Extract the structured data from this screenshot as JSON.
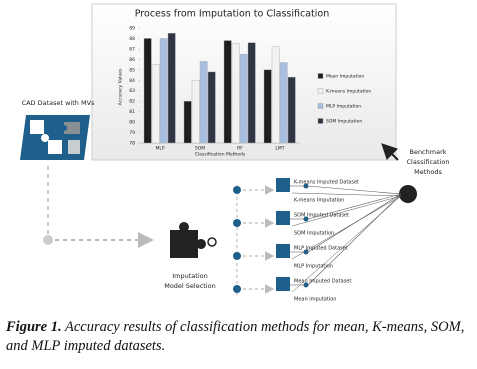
{
  "chart_data": {
    "type": "bar",
    "title": "Process from Imputation to Classification",
    "y_label": "Accuracy Values",
    "x_label": "Classification Methods",
    "categories": [
      "MLP",
      "SOM",
      "RF",
      "LMT"
    ],
    "series": [
      {
        "name": "Mean Imputation",
        "color": "#1e1e1e",
        "values": [
          88,
          82,
          87.8,
          85
        ]
      },
      {
        "name": "K-means Imputation",
        "color": "#f2f2f2",
        "values": [
          85.5,
          84,
          87.5,
          87.2
        ]
      },
      {
        "name": "MLP Imputation",
        "color": "#a9bfe0",
        "values": [
          88,
          85.8,
          86.5,
          85.7
        ]
      },
      {
        "name": "SOM Imputation",
        "color": "#2f3542",
        "values": [
          88.5,
          84.8,
          87.6,
          84.3
        ]
      }
    ],
    "ylim": [
      78,
      89
    ],
    "yticks": [
      78,
      79,
      80,
      81,
      82,
      83,
      84,
      85,
      86,
      87,
      88,
      89
    ],
    "grid": false,
    "legend": "right"
  },
  "diagram": {
    "source_label": "CAD Dataset with MVs",
    "selection_label": [
      "Imputation",
      "Model Selection"
    ],
    "benchmark_label": [
      "Benchmark",
      "Classification",
      "Methods"
    ],
    "datasets": [
      {
        "title": "K-means Imputed Dataset",
        "method": "K-means Imputation"
      },
      {
        "title": "SOM Imputed Dataset",
        "method": "SOM Imputation"
      },
      {
        "title": "MLP Imputed Dataset",
        "method": "MLP Imputation"
      },
      {
        "title": "Mean Imputed Dataset",
        "method": "Mean imputation"
      }
    ]
  },
  "caption": {
    "label": "Figure 1.",
    "text": "Accuracy results of classification methods for mean, K-means, SOM, and MLP imputed datasets."
  }
}
